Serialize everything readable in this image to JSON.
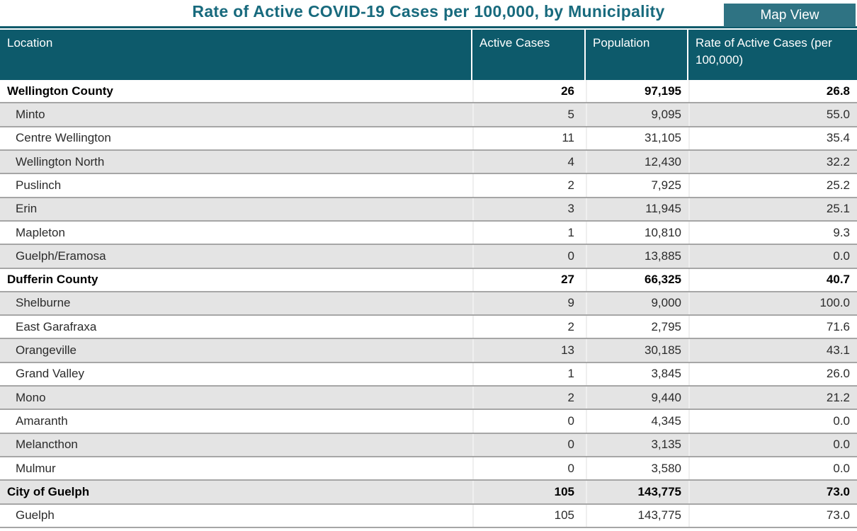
{
  "title": "Rate of Active COVID-19 Cases per 100,000, by Municipality",
  "map_view_button": {
    "label": "Map View"
  },
  "colors": {
    "header_bg": "#0d5a6b",
    "button_bg": "#2f7383",
    "title_color": "#186a7d",
    "stripe_bg": "#e4e4e4",
    "separator": "#a6a6a6",
    "vline": "#efefef"
  },
  "chart_data": {
    "type": "table",
    "title": "Rate of Active COVID-19 Cases per 100,000, by Municipality",
    "columns": [
      "Location",
      "Active Cases",
      "Population",
      "Rate of Active Cases (per 100,000)"
    ],
    "rows": [
      {
        "location": "Wellington County",
        "active_cases": 26,
        "population": 97195,
        "rate": 26.8,
        "level": "county"
      },
      {
        "location": "Minto",
        "active_cases": 5,
        "population": 9095,
        "rate": 55.0,
        "level": "municipality"
      },
      {
        "location": "Centre Wellington",
        "active_cases": 11,
        "population": 31105,
        "rate": 35.4,
        "level": "municipality"
      },
      {
        "location": "Wellington North",
        "active_cases": 4,
        "population": 12430,
        "rate": 32.2,
        "level": "municipality"
      },
      {
        "location": "Puslinch",
        "active_cases": 2,
        "population": 7925,
        "rate": 25.2,
        "level": "municipality"
      },
      {
        "location": "Erin",
        "active_cases": 3,
        "population": 11945,
        "rate": 25.1,
        "level": "municipality"
      },
      {
        "location": "Mapleton",
        "active_cases": 1,
        "population": 10810,
        "rate": 9.3,
        "level": "municipality"
      },
      {
        "location": "Guelph/Eramosa",
        "active_cases": 0,
        "population": 13885,
        "rate": 0.0,
        "level": "municipality"
      },
      {
        "location": "Dufferin County",
        "active_cases": 27,
        "population": 66325,
        "rate": 40.7,
        "level": "county"
      },
      {
        "location": "Shelburne",
        "active_cases": 9,
        "population": 9000,
        "rate": 100.0,
        "level": "municipality"
      },
      {
        "location": "East Garafraxa",
        "active_cases": 2,
        "population": 2795,
        "rate": 71.6,
        "level": "municipality"
      },
      {
        "location": "Orangeville",
        "active_cases": 13,
        "population": 30185,
        "rate": 43.1,
        "level": "municipality"
      },
      {
        "location": "Grand Valley",
        "active_cases": 1,
        "population": 3845,
        "rate": 26.0,
        "level": "municipality"
      },
      {
        "location": "Mono",
        "active_cases": 2,
        "population": 9440,
        "rate": 21.2,
        "level": "municipality"
      },
      {
        "location": "Amaranth",
        "active_cases": 0,
        "population": 4345,
        "rate": 0.0,
        "level": "municipality"
      },
      {
        "location": "Melancthon",
        "active_cases": 0,
        "population": 3135,
        "rate": 0.0,
        "level": "municipality"
      },
      {
        "location": "Mulmur",
        "active_cases": 0,
        "population": 3580,
        "rate": 0.0,
        "level": "municipality"
      },
      {
        "location": "City of Guelph",
        "active_cases": 105,
        "population": 143775,
        "rate": 73.0,
        "level": "county"
      },
      {
        "location": "Guelph",
        "active_cases": 105,
        "population": 143775,
        "rate": 73.0,
        "level": "municipality"
      }
    ]
  }
}
